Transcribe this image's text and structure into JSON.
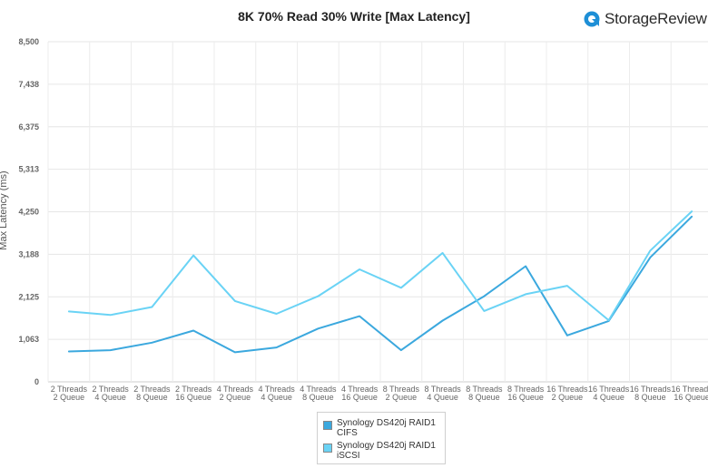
{
  "brand": {
    "name": "StorageReview",
    "icon": "storagereview-logo-icon",
    "color": "#1e8fd6"
  },
  "chart_data": {
    "type": "line",
    "title": "8K 70% Read 30% Write [Max Latency]",
    "xlabel": "",
    "ylabel": "Max Latency (ms)",
    "ylim": [
      0,
      8500
    ],
    "yticks": [
      "0",
      "1,063",
      "2,125",
      "3,188",
      "4,250",
      "5,313",
      "6,375",
      "7,438",
      "8,500"
    ],
    "grid": true,
    "legend_position": "bottom-center",
    "categories": [
      [
        "2 Threads",
        "2 Queue"
      ],
      [
        "2 Threads",
        "4 Queue"
      ],
      [
        "2 Threads",
        "8 Queue"
      ],
      [
        "2 Threads",
        "16 Queue"
      ],
      [
        "4 Threads",
        "2 Queue"
      ],
      [
        "4 Threads",
        "4 Queue"
      ],
      [
        "4 Threads",
        "8 Queue"
      ],
      [
        "4 Threads",
        "16 Queue"
      ],
      [
        "8 Threads",
        "2 Queue"
      ],
      [
        "8 Threads",
        "4 Queue"
      ],
      [
        "8 Threads",
        "8 Queue"
      ],
      [
        "8 Threads",
        "16 Queue"
      ],
      [
        "16 Threads",
        "2 Queue"
      ],
      [
        "16 Threads",
        "4 Queue"
      ],
      [
        "16 Threads",
        "8 Queue"
      ],
      [
        "16 Threads",
        "16 Queue"
      ]
    ],
    "series": [
      {
        "name": "Synology DS420j RAID1 CIFS",
        "color": "#3ba8de",
        "values": [
          760,
          790,
          980,
          1280,
          740,
          860,
          1330,
          1640,
          790,
          1530,
          2140,
          2890,
          1160,
          1520,
          3110,
          4130
        ]
      },
      {
        "name": "Synology DS420j RAID1 iSCSI",
        "color": "#6ad3f5",
        "values": [
          1760,
          1670,
          1870,
          3160,
          2020,
          1700,
          2140,
          2810,
          2350,
          3220,
          1770,
          2190,
          2400,
          1540,
          3280,
          4260
        ]
      }
    ]
  }
}
